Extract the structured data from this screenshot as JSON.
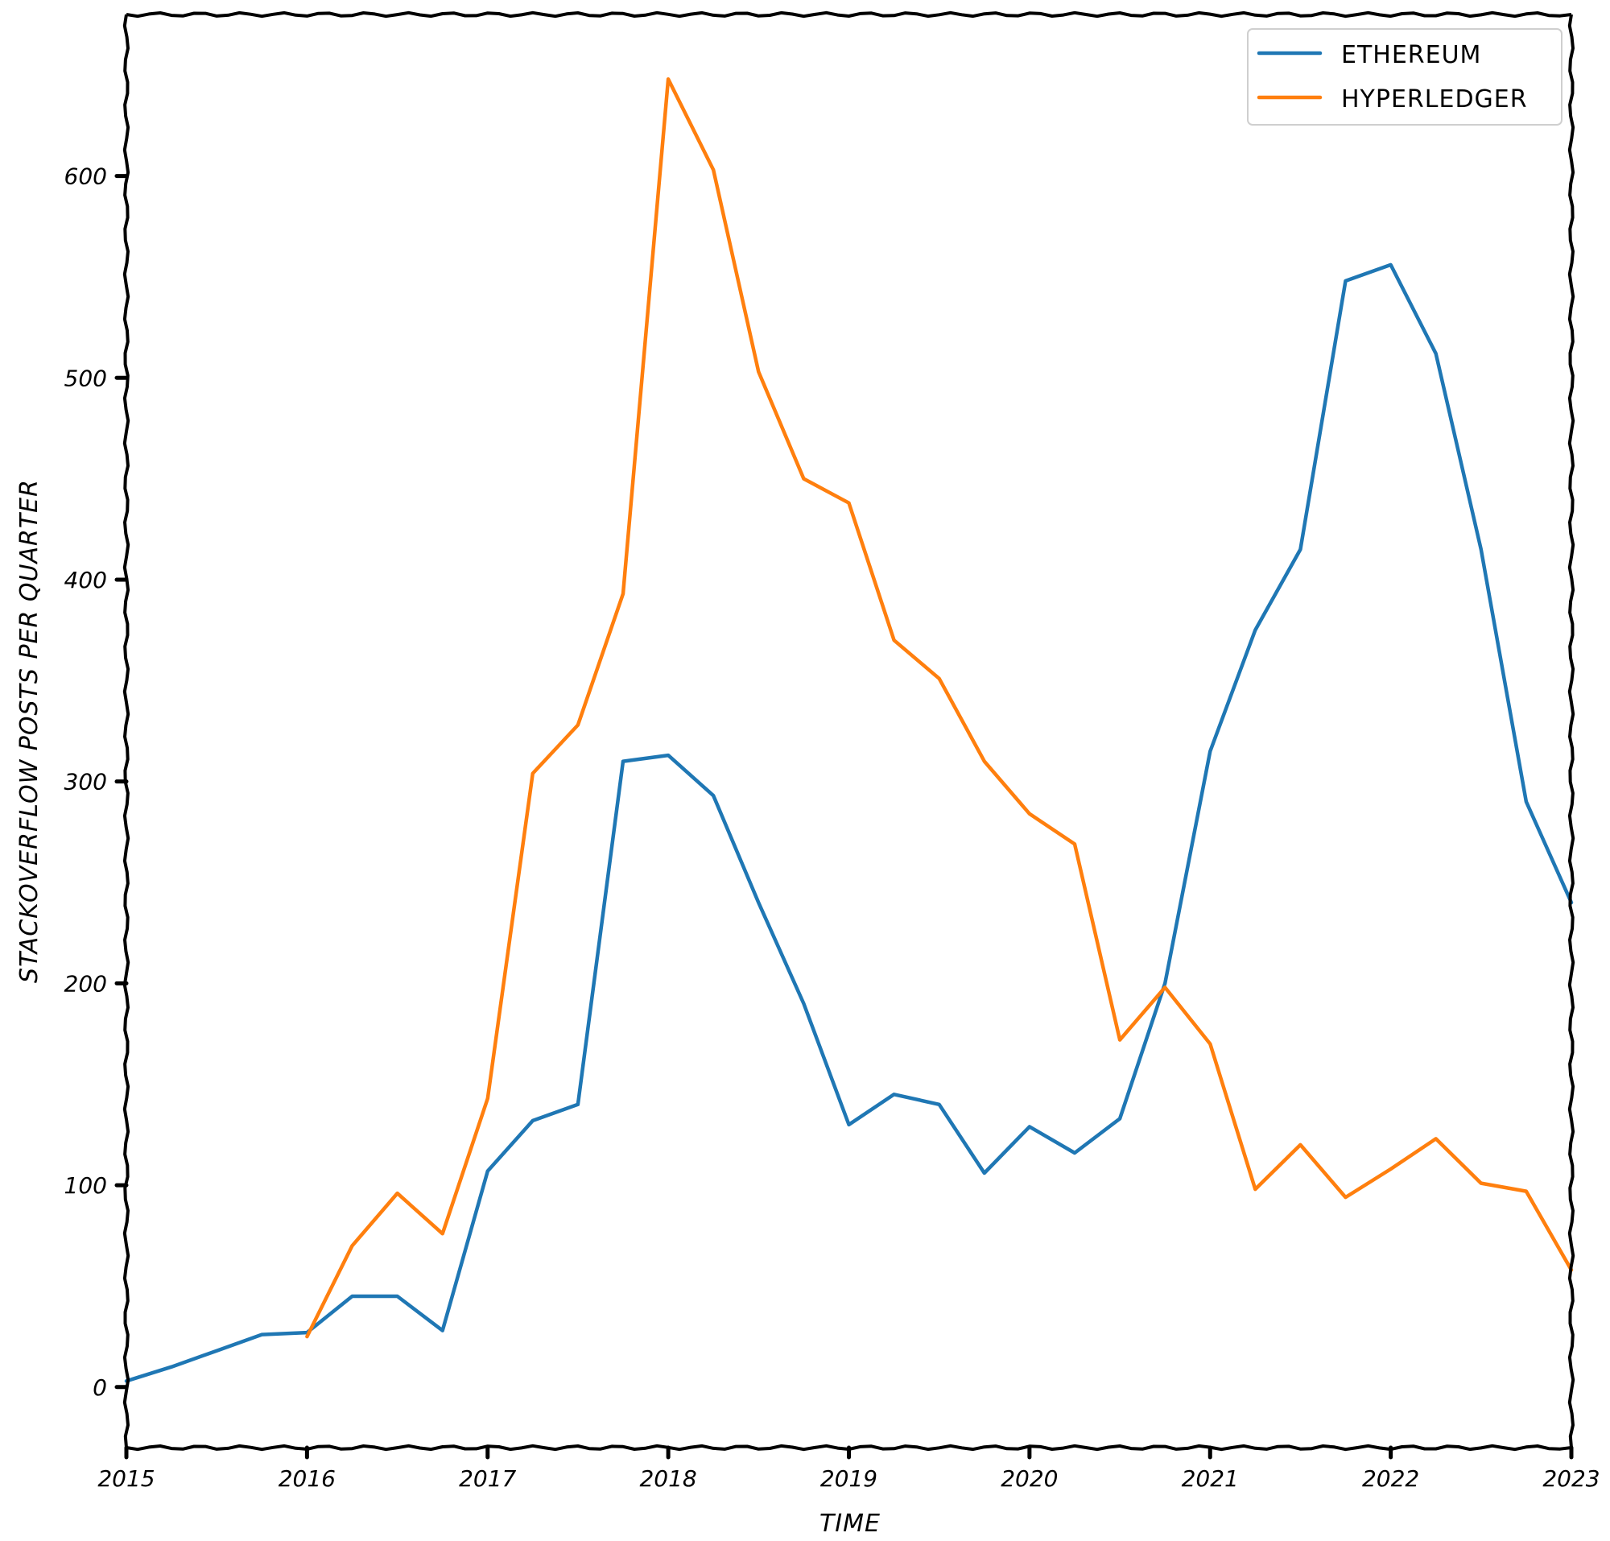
{
  "chart_data": {
    "type": "line",
    "xlabel": "TIME",
    "ylabel": "STACKOVERFLOW POSTS PER QUARTER",
    "xlim": [
      2015,
      2023
    ],
    "ylim": [
      -30,
      680
    ],
    "x_ticks": [
      2015,
      2016,
      2017,
      2018,
      2019,
      2020,
      2021,
      2022,
      2023
    ],
    "x_tick_labels": [
      "2015",
      "2016",
      "2017",
      "2018",
      "2019",
      "2020",
      "2021",
      "2022",
      "2023"
    ],
    "y_ticks": [
      0,
      100,
      200,
      300,
      400,
      500,
      600
    ],
    "y_tick_labels": [
      "0",
      "100",
      "200",
      "300",
      "400",
      "500",
      "600"
    ],
    "legend_position": "top-right",
    "series": [
      {
        "name": "ETHEREUM",
        "color": "#1f77b4",
        "points": [
          [
            2015.0,
            3
          ],
          [
            2015.25,
            10
          ],
          [
            2015.5,
            18
          ],
          [
            2015.75,
            26
          ],
          [
            2016.0,
            27
          ],
          [
            2016.25,
            45
          ],
          [
            2016.5,
            45
          ],
          [
            2016.75,
            28
          ],
          [
            2017.0,
            107
          ],
          [
            2017.25,
            132
          ],
          [
            2017.5,
            140
          ],
          [
            2017.75,
            310
          ],
          [
            2018.0,
            313
          ],
          [
            2018.25,
            293
          ],
          [
            2018.5,
            240
          ],
          [
            2018.75,
            190
          ],
          [
            2019.0,
            130
          ],
          [
            2019.25,
            145
          ],
          [
            2019.5,
            140
          ],
          [
            2019.75,
            106
          ],
          [
            2020.0,
            129
          ],
          [
            2020.25,
            116
          ],
          [
            2020.5,
            133
          ],
          [
            2020.75,
            200
          ],
          [
            2021.0,
            315
          ],
          [
            2021.25,
            375
          ],
          [
            2021.5,
            415
          ],
          [
            2021.75,
            548
          ],
          [
            2022.0,
            556
          ],
          [
            2022.25,
            512
          ],
          [
            2022.5,
            415
          ],
          [
            2022.75,
            290
          ],
          [
            2023.0,
            240
          ]
        ]
      },
      {
        "name": "HYPERLEDGER",
        "color": "#ff7f0e",
        "points": [
          [
            2016.0,
            25
          ],
          [
            2016.25,
            70
          ],
          [
            2016.5,
            96
          ],
          [
            2016.75,
            76
          ],
          [
            2017.0,
            143
          ],
          [
            2017.25,
            304
          ],
          [
            2017.5,
            328
          ],
          [
            2017.75,
            393
          ],
          [
            2018.0,
            648
          ],
          [
            2018.25,
            603
          ],
          [
            2018.5,
            503
          ],
          [
            2018.75,
            450
          ],
          [
            2019.0,
            438
          ],
          [
            2019.25,
            370
          ],
          [
            2019.5,
            351
          ],
          [
            2019.75,
            310
          ],
          [
            2020.0,
            284
          ],
          [
            2020.25,
            269
          ],
          [
            2020.5,
            172
          ],
          [
            2020.75,
            198
          ],
          [
            2021.0,
            170
          ],
          [
            2021.25,
            98
          ],
          [
            2021.5,
            120
          ],
          [
            2021.75,
            94
          ],
          [
            2022.0,
            108
          ],
          [
            2022.25,
            123
          ],
          [
            2022.5,
            101
          ],
          [
            2022.75,
            97
          ],
          [
            2023.0,
            58
          ]
        ]
      }
    ]
  }
}
